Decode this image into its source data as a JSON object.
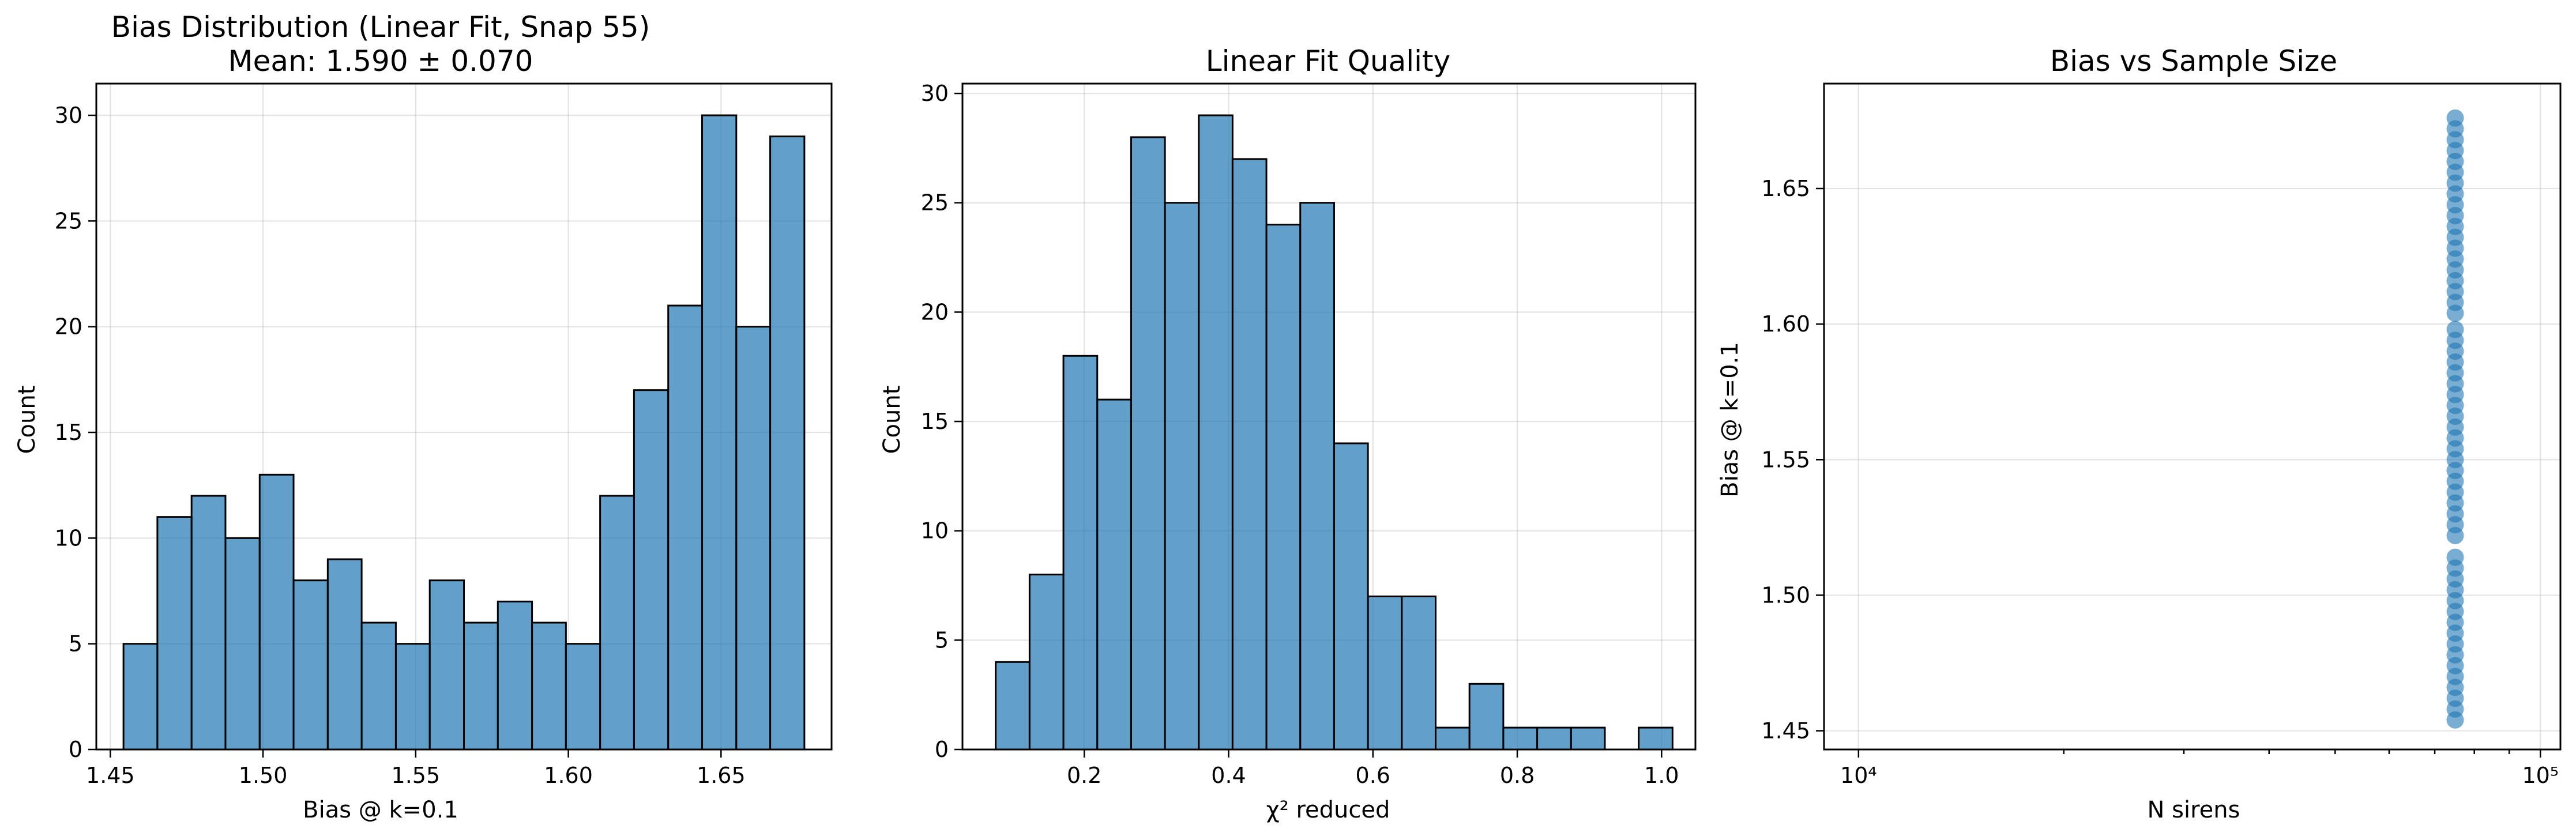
{
  "figure": {
    "bar_color": "#1f77b4",
    "bar_alpha": 0.7,
    "edge_color": "#000000"
  },
  "chart_data": [
    {
      "type": "bar",
      "title": "Bias Distribution (Linear Fit, Snap 55)",
      "subtitle": "Mean: 1.590 ± 0.070",
      "xlabel": "Bias @ k=0.1",
      "ylabel": "Count",
      "xlim": [
        1.4454,
        1.6862
      ],
      "ylim": [
        0,
        31.5
      ],
      "xticks": [
        1.45,
        1.5,
        1.55,
        1.6,
        1.65
      ],
      "xtick_labels": [
        "1.45",
        "1.50",
        "1.55",
        "1.60",
        "1.65"
      ],
      "yticks": [
        0,
        5,
        10,
        15,
        20,
        25,
        30
      ],
      "ytick_labels": [
        "0",
        "5",
        "10",
        "15",
        "20",
        "25",
        "30"
      ],
      "grid": true,
      "bin_edges": [
        1.4543,
        1.4654,
        1.4766,
        1.4877,
        1.4989,
        1.51,
        1.5212,
        1.5323,
        1.5435,
        1.5546,
        1.5658,
        1.5769,
        1.5881,
        1.5992,
        1.6104,
        1.6215,
        1.6327,
        1.6438,
        1.655,
        1.6661,
        1.6773
      ],
      "values": [
        5,
        11,
        12,
        10,
        13,
        8,
        9,
        6,
        5,
        8,
        6,
        7,
        6,
        5,
        12,
        17,
        21,
        30,
        20,
        29
      ]
    },
    {
      "type": "bar",
      "title": "Linear Fit Quality",
      "xlabel": "χ² reduced",
      "ylabel": "Count",
      "xlim": [
        0.0312,
        1.0469
      ],
      "ylim": [
        0,
        30.45
      ],
      "xticks": [
        0.2,
        0.4,
        0.6,
        0.8,
        1.0
      ],
      "xtick_labels": [
        "0.2",
        "0.4",
        "0.6",
        "0.8",
        "1.0"
      ],
      "yticks": [
        0,
        5,
        10,
        15,
        20,
        25,
        30
      ],
      "ytick_labels": [
        "0",
        "5",
        "10",
        "15",
        "20",
        "25",
        "30"
      ],
      "grid": true,
      "bin_edges": [
        0.0773,
        0.1242,
        0.1711,
        0.218,
        0.2649,
        0.3118,
        0.3587,
        0.4055,
        0.4524,
        0.4993,
        0.5462,
        0.5931,
        0.64,
        0.6869,
        0.7338,
        0.7807,
        0.8276,
        0.8745,
        0.9214,
        0.9683,
        1.0152
      ],
      "values": [
        4,
        8,
        18,
        16,
        28,
        25,
        29,
        27,
        24,
        25,
        14,
        7,
        7,
        1,
        3,
        1,
        1,
        1,
        0,
        1
      ]
    },
    {
      "type": "scatter",
      "title": "Bias vs Sample Size",
      "xlabel": "N sirens",
      "ylabel": "Bias @ k=0.1",
      "xscale": "log",
      "xlim": [
        8900,
        107000
      ],
      "ylim": [
        1.4431,
        1.6887
      ],
      "xticks": [
        10000,
        100000
      ],
      "xtick_labels": [
        "10⁴",
        "10⁵"
      ],
      "minor_xticks": [
        20000,
        30000,
        40000,
        50000,
        60000,
        70000,
        80000,
        90000
      ],
      "yticks": [
        1.45,
        1.5,
        1.55,
        1.6,
        1.65
      ],
      "ytick_labels": [
        "1.45",
        "1.50",
        "1.55",
        "1.60",
        "1.65"
      ],
      "grid": true,
      "x_value": 75000,
      "y_values": [
        1.454,
        1.458,
        1.462,
        1.466,
        1.47,
        1.474,
        1.478,
        1.482,
        1.486,
        1.49,
        1.494,
        1.498,
        1.502,
        1.506,
        1.51,
        1.514,
        1.522,
        1.526,
        1.53,
        1.534,
        1.538,
        1.542,
        1.546,
        1.55,
        1.554,
        1.558,
        1.562,
        1.566,
        1.57,
        1.574,
        1.578,
        1.582,
        1.586,
        1.59,
        1.594,
        1.598,
        1.604,
        1.608,
        1.612,
        1.616,
        1.62,
        1.624,
        1.628,
        1.632,
        1.636,
        1.64,
        1.644,
        1.648,
        1.652,
        1.656,
        1.66,
        1.664,
        1.668,
        1.672,
        1.676
      ]
    }
  ]
}
